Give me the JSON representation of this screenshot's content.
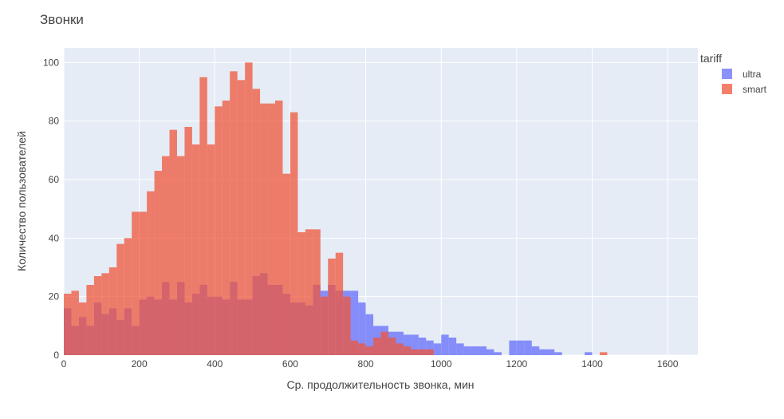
{
  "chart_data": {
    "type": "bar",
    "mode": "overlay",
    "title": "Звонки",
    "xlabel": "Ср. продолжительность звонка, мин",
    "ylabel": "Количество пользователей",
    "xlim": [
      0,
      1680
    ],
    "ylim": [
      0,
      105
    ],
    "x_ticks": [
      0,
      200,
      400,
      600,
      800,
      1000,
      1200,
      1400,
      1600
    ],
    "y_ticks": [
      0,
      20,
      40,
      60,
      80,
      100
    ],
    "bin_width": 20,
    "grid": true,
    "legend_title": "tariff",
    "legend_position": "top-right",
    "series": [
      {
        "name": "ultra",
        "color": "#636efa",
        "values": [
          16,
          10,
          13,
          10,
          18,
          14,
          16,
          12,
          16,
          10,
          19,
          20,
          19,
          25,
          19,
          25,
          18,
          21,
          24,
          20,
          20,
          19,
          25,
          19,
          19,
          27,
          28,
          24,
          24,
          21,
          18,
          18,
          17,
          24,
          22,
          24,
          22,
          22,
          22,
          18,
          14,
          10,
          10,
          8,
          8,
          7,
          7,
          6,
          5,
          4,
          7,
          6,
          4,
          3,
          3,
          3,
          2,
          1,
          0,
          5,
          5,
          5,
          3,
          2,
          2,
          1,
          0,
          0,
          0,
          1,
          0,
          0,
          0,
          0,
          0,
          0,
          0,
          0,
          0,
          0,
          0,
          0,
          0,
          0
        ],
        "values_note": "counts per 20-minute bin from 0"
      },
      {
        "name": "smart",
        "color": "#ef553b",
        "values": [
          21,
          22,
          18,
          24,
          27,
          28,
          30,
          38,
          40,
          49,
          49,
          56,
          63,
          68,
          77,
          68,
          78,
          72,
          95,
          72,
          85,
          87,
          97,
          94,
          100,
          91,
          86,
          86,
          87,
          62,
          83,
          42,
          43,
          43,
          20,
          33,
          35,
          20,
          5,
          4,
          3,
          6,
          8,
          6,
          4,
          3,
          2,
          2,
          2,
          0,
          0,
          0,
          0,
          0,
          0,
          0,
          0,
          0,
          0,
          0,
          0,
          0,
          0,
          0,
          0,
          0,
          0,
          0,
          0,
          0,
          0,
          1,
          0,
          0,
          0,
          0,
          0,
          0,
          0,
          0,
          0,
          0,
          0,
          0
        ]
      }
    ]
  }
}
